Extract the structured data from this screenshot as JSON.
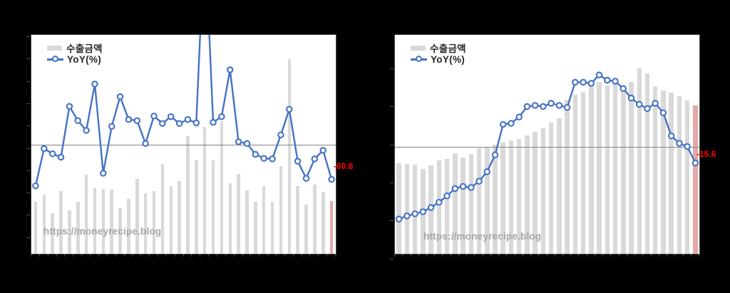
{
  "figure": {
    "background_color": "#000000",
    "titles_visible": false
  },
  "chart_data": [
    {
      "type": "combo_bar_line",
      "position": "left",
      "legend": [
        {
          "label": "수출금액",
          "swatch": "gray-bar"
        },
        {
          "label": "YoY(%)",
          "swatch": "blue-line-circle-marker"
        }
      ],
      "legend_position": "inside-top-left",
      "watermark": "https://moneyrecipe.blog",
      "annotation": {
        "text": "-60.8",
        "color": "#ff0000",
        "refers_to": "last YoY(%) point"
      },
      "x_axis": {
        "tick_labels_visible": false,
        "n_periods": 36
      },
      "y_axis": {
        "tick_labels_visible": false,
        "ylim_pct": [
          -191,
          192
        ],
        "zero_line": true
      },
      "bar_series": {
        "name": "수출금액",
        "color": "#d9d9d9",
        "last_bar_color": "#e3a9a6",
        "unit": "pct_of_plot_height (value-axis labels not visible)",
        "values": [
          23.7,
          27.0,
          18.6,
          28.7,
          20.0,
          23.7,
          36.1,
          30.1,
          29.8,
          29.2,
          20.8,
          25.1,
          34.2,
          27.7,
          28.7,
          41.0,
          30.9,
          33.3,
          53.6,
          42.6,
          57.9,
          42.6,
          60.7,
          32.2,
          36.6,
          29.0,
          23.7,
          31.1,
          23.7,
          40.1,
          89.1,
          30.9,
          22.6,
          31.7,
          28.4,
          24.0
        ]
      },
      "line_series": {
        "name": "YoY(%)",
        "color": "#4472c4",
        "marker": "open-circle",
        "unit": "percent",
        "values": [
          -72,
          -7,
          -16,
          -22,
          67,
          42,
          25,
          106,
          -50,
          32,
          84,
          44,
          42,
          2,
          50,
          37,
          49,
          37,
          44,
          38,
          375,
          39,
          49,
          131,
          5,
          2,
          -17,
          -24,
          -25,
          17,
          62,
          -29,
          -59,
          -25,
          -10,
          -60.8
        ],
        "clipped_point_index": 20,
        "clipped_note": "point 21 exceeds axis maximum and is clipped at plot top"
      }
    },
    {
      "type": "combo_bar_line",
      "position": "right",
      "legend": [
        {
          "label": "수출금액",
          "swatch": "gray-bar"
        },
        {
          "label": "YoY(%)",
          "swatch": "blue-line-circle-marker"
        }
      ],
      "legend_position": "inside-top-left",
      "watermark": "https://moneyrecipe.blog",
      "annotation": {
        "text": "-15.6",
        "color": "#ff0000",
        "refers_to": "last YoY(%) point"
      },
      "x_axis": {
        "tick_labels_visible": false,
        "n_periods": 38
      },
      "y_axis": {
        "tick_labels_visible": false,
        "ylim_pct": [
          -102,
          106
        ],
        "zero_line": true
      },
      "bar_series": {
        "name": "수출금액",
        "color": "#d9d9d9",
        "last_bar_color": "#e3a9a6",
        "unit": "pct_of_plot_height (value-axis labels not visible)",
        "values": [
          41.5,
          41.0,
          40.8,
          38.8,
          40.4,
          42.6,
          43.2,
          45.9,
          44.0,
          45.6,
          48.1,
          48.9,
          49.7,
          50.8,
          51.7,
          52.5,
          54.1,
          55.7,
          57.4,
          60.1,
          62.0,
          70.5,
          72.5,
          74.0,
          78.7,
          78.4,
          77.0,
          80.3,
          77.0,
          78.4,
          84.7,
          82.5,
          76.7,
          74.6,
          73.5,
          72.0,
          70.0,
          67.8
        ]
      },
      "line_series": {
        "name": "YoY(%)",
        "color": "#4472c4",
        "marker": "open-circle",
        "unit": "percent",
        "values": [
          -69,
          -66,
          -64,
          -62,
          -58,
          -53,
          -47,
          -40,
          -38,
          -39,
          -33,
          -24,
          -8,
          21,
          22,
          28,
          38,
          39,
          38,
          41,
          39,
          37,
          61,
          61,
          60,
          68,
          63,
          62,
          55,
          46,
          40,
          36,
          41,
          32,
          10,
          3,
          0,
          -15.6
        ]
      }
    }
  ]
}
